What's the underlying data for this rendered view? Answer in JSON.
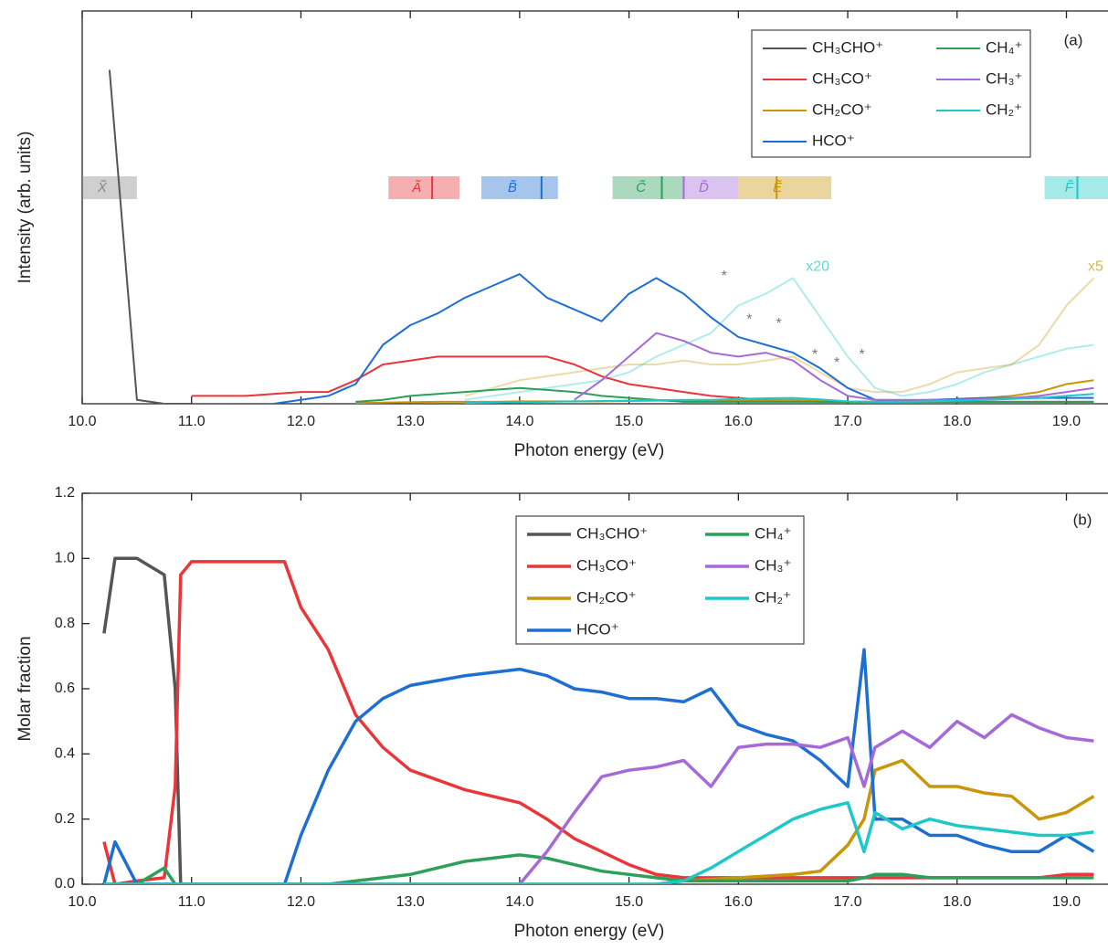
{
  "chart_data": [
    {
      "type": "line",
      "panel_label": "(a)",
      "x_label": "Photon energy (eV)",
      "y_label": "Intensity (arb. units)",
      "xlim": [
        10,
        19.38
      ],
      "ylim": [
        0,
        1
      ],
      "xticks": [
        {
          "value": 10,
          "label": "10.0"
        },
        {
          "value": 11,
          "label": "11.0"
        },
        {
          "value": 12,
          "label": "12.0"
        },
        {
          "value": 13,
          "label": "13.0"
        },
        {
          "value": 14,
          "label": "14.0"
        },
        {
          "value": 15,
          "label": "15.0"
        },
        {
          "value": 16,
          "label": "16.0"
        },
        {
          "value": 17,
          "label": "17.0"
        },
        {
          "value": 18,
          "label": "18.0"
        },
        {
          "value": 19,
          "label": "19.0"
        }
      ],
      "x": [
        10.0,
        10.25,
        10.5,
        10.75,
        11.0,
        11.25,
        11.5,
        11.75,
        12.0,
        12.25,
        12.5,
        12.75,
        13.0,
        13.25,
        13.5,
        13.75,
        14.0,
        14.25,
        14.5,
        14.75,
        15.0,
        15.25,
        15.5,
        15.75,
        16.0,
        16.25,
        16.5,
        16.75,
        17.0,
        17.25,
        17.5,
        17.75,
        18.0,
        18.25,
        18.5,
        18.75,
        19.0,
        19.25
      ],
      "series": [
        {
          "name": "CH₃CHO⁺",
          "color": "#555555",
          "values": [
            null,
            0.85,
            0.01,
            0,
            0,
            null,
            null,
            null,
            null,
            null,
            null,
            null,
            null,
            null,
            null,
            null,
            null,
            null,
            null,
            null,
            null,
            null,
            null,
            null,
            null,
            null,
            null,
            null,
            null,
            null,
            null,
            null,
            null,
            null,
            null,
            null,
            null,
            null
          ]
        },
        {
          "name": "CH₃CO⁺",
          "color": "#e8363a",
          "values": [
            null,
            null,
            null,
            null,
            0.02,
            0.02,
            0.02,
            0.025,
            0.03,
            0.03,
            0.06,
            0.1,
            0.11,
            0.12,
            0.12,
            0.12,
            0.12,
            0.12,
            0.1,
            0.07,
            0.05,
            0.04,
            0.03,
            0.02,
            0.015,
            0.01,
            0.01,
            0.005,
            0.005,
            0.005,
            0.005,
            0.005,
            0.005,
            0.005,
            0.005,
            0.005,
            0.005,
            0.005
          ]
        },
        {
          "name": "CH₂CO⁺",
          "color": "#c8960a",
          "values": [
            null,
            null,
            null,
            null,
            null,
            null,
            null,
            null,
            null,
            null,
            0.002,
            0.003,
            0.004,
            0.005,
            0.005,
            0.005,
            0.006,
            0.006,
            0.006,
            0.006,
            0.007,
            0.008,
            0.008,
            0.008,
            0.008,
            0.009,
            0.01,
            0.008,
            0.005,
            0.005,
            0.006,
            0.008,
            0.012,
            0.015,
            0.02,
            0.03,
            0.05,
            0.06
          ]
        },
        {
          "name": "HCO⁺",
          "color": "#1f6fd1",
          "values": [
            null,
            null,
            null,
            null,
            null,
            null,
            null,
            0.0,
            0.01,
            0.02,
            0.05,
            0.15,
            0.2,
            0.23,
            0.27,
            0.3,
            0.33,
            0.27,
            0.24,
            0.21,
            0.28,
            0.32,
            0.28,
            0.22,
            0.17,
            0.15,
            0.13,
            0.09,
            0.04,
            0.01,
            0.005,
            0.01,
            0.012,
            0.015,
            0.015,
            0.015,
            0.015,
            0.015
          ]
        },
        {
          "name": "CH₄⁺",
          "color": "#2ca05a",
          "values": [
            null,
            null,
            null,
            null,
            null,
            null,
            null,
            null,
            null,
            null,
            0.005,
            0.01,
            0.02,
            0.025,
            0.03,
            0.035,
            0.04,
            0.035,
            0.03,
            0.02,
            0.015,
            0.01,
            0.005,
            0.005,
            0.005,
            0.005,
            0.005,
            0.005,
            0.005,
            0.005,
            0.005,
            0.005,
            0.005,
            0.005,
            0.005,
            0.005,
            0.005,
            0.005
          ]
        },
        {
          "name": "CH₃⁺",
          "color": "#a56ad8",
          "values": [
            null,
            null,
            null,
            null,
            null,
            null,
            null,
            null,
            null,
            null,
            null,
            null,
            null,
            null,
            null,
            null,
            null,
            null,
            0.01,
            0.06,
            0.12,
            0.18,
            0.16,
            0.13,
            0.12,
            0.13,
            0.11,
            0.06,
            0.02,
            0.01,
            0.01,
            0.01,
            0.01,
            0.012,
            0.015,
            0.02,
            0.03,
            0.04
          ]
        },
        {
          "name": "CH₂⁺",
          "color": "#1ec8c8",
          "values": [
            null,
            null,
            null,
            null,
            null,
            null,
            null,
            null,
            null,
            null,
            null,
            null,
            null,
            null,
            0.002,
            0.003,
            0.004,
            0.005,
            0.006,
            0.007,
            0.008,
            0.009,
            0.01,
            0.01,
            0.012,
            0.014,
            0.015,
            0.011,
            0.006,
            0.005,
            0.005,
            0.006,
            0.008,
            0.01,
            0.012,
            0.015,
            0.02,
            0.025
          ]
        }
      ],
      "scaled_series": [
        {
          "label": "x20",
          "color": "#1ec8c8",
          "values": [
            null,
            null,
            null,
            null,
            null,
            null,
            null,
            null,
            null,
            null,
            null,
            null,
            null,
            null,
            0.01,
            0.02,
            0.03,
            0.04,
            0.05,
            0.06,
            0.08,
            0.12,
            0.15,
            0.18,
            0.25,
            0.28,
            0.32,
            0.22,
            0.12,
            0.04,
            0.02,
            0.03,
            0.05,
            0.08,
            0.1,
            0.12,
            0.14,
            0.15
          ]
        },
        {
          "label": "x5",
          "color": "#c8960a",
          "values": [
            null,
            null,
            null,
            null,
            null,
            null,
            null,
            null,
            null,
            null,
            null,
            null,
            null,
            null,
            0.02,
            0.04,
            0.06,
            0.07,
            0.08,
            0.09,
            0.1,
            0.1,
            0.11,
            0.1,
            0.1,
            0.11,
            0.12,
            0.08,
            0.04,
            0.03,
            0.03,
            0.05,
            0.08,
            0.09,
            0.1,
            0.15,
            0.25,
            0.32
          ]
        }
      ],
      "annotations": [
        {
          "text": "*",
          "x": 15.87,
          "y": 0.3
        },
        {
          "text": "*",
          "x": 16.1,
          "y": 0.19
        },
        {
          "text": "*",
          "x": 16.37,
          "y": 0.18
        },
        {
          "text": "*",
          "x": 16.7,
          "y": 0.1
        },
        {
          "text": "*",
          "x": 16.9,
          "y": 0.08
        },
        {
          "text": "*",
          "x": 17.13,
          "y": 0.1
        }
      ],
      "states": [
        {
          "label": "X̃",
          "range": [
            10.0,
            10.5
          ],
          "color": "#888888"
        },
        {
          "label": "Ã",
          "range": [
            12.8,
            13.45
          ],
          "line": 13.2,
          "color": "#e8363a"
        },
        {
          "label": "B̃",
          "range": [
            13.65,
            14.35
          ],
          "line": 14.2,
          "color": "#1f6fd1"
        },
        {
          "label": "C̃",
          "range": [
            14.85,
            15.5
          ],
          "line": 15.3,
          "color": "#2ca05a"
        },
        {
          "label": "D̃",
          "range": [
            15.5,
            16.0
          ],
          "line": 15.5,
          "color": "#a56ad8"
        },
        {
          "label": "Ẽ",
          "range": [
            16.0,
            16.85
          ],
          "line": 16.35,
          "color": "#c8960a"
        },
        {
          "label": "F̃",
          "range": [
            18.8,
            19.38
          ],
          "line": 19.1,
          "color": "#1ec8c8"
        }
      ]
    },
    {
      "type": "line",
      "panel_label": "(b)",
      "x_label": "Photon energy (eV)",
      "y_label": "Molar fraction",
      "xlim": [
        10,
        19.38
      ],
      "ylim": [
        0,
        1.2
      ],
      "xticks": [
        {
          "value": 10,
          "label": "10.0"
        },
        {
          "value": 11,
          "label": "11.0"
        },
        {
          "value": 12,
          "label": "12.0"
        },
        {
          "value": 13,
          "label": "13.0"
        },
        {
          "value": 14,
          "label": "14.0"
        },
        {
          "value": 15,
          "label": "15.0"
        },
        {
          "value": 16,
          "label": "16.0"
        },
        {
          "value": 17,
          "label": "17.0"
        },
        {
          "value": 18,
          "label": "18.0"
        },
        {
          "value": 19,
          "label": "19.0"
        }
      ],
      "yticks": [
        {
          "value": 0,
          "label": "0.0"
        },
        0.2,
        0.4,
        0.6,
        0.8,
        {
          "value": 1,
          "label": "1.0"
        },
        1.2
      ],
      "x": [
        10.2,
        10.3,
        10.5,
        10.75,
        10.85,
        10.9,
        11.0,
        11.5,
        11.85,
        12.0,
        12.25,
        12.5,
        12.75,
        13.0,
        13.5,
        14.0,
        14.25,
        14.5,
        14.75,
        15.0,
        15.25,
        15.5,
        15.75,
        16.0,
        16.25,
        16.5,
        16.75,
        17.0,
        17.15,
        17.25,
        17.5,
        17.75,
        18.0,
        18.25,
        18.5,
        18.75,
        19.0,
        19.25
      ],
      "series": [
        {
          "name": "CH₃CHO⁺",
          "color": "#555555",
          "values": [
            0.77,
            1.0,
            1.0,
            0.95,
            0.6,
            0.0,
            null,
            null,
            null,
            null,
            null,
            null,
            null,
            null,
            null,
            null,
            null,
            null,
            null,
            null,
            null,
            null,
            null,
            null,
            null,
            null,
            null,
            null,
            null,
            null,
            null,
            null,
            null,
            null,
            null,
            null,
            null,
            null
          ]
        },
        {
          "name": "CH₃CO⁺",
          "color": "#e8363a",
          "values": [
            0.13,
            0.0,
            0.01,
            0.02,
            0.3,
            0.95,
            0.99,
            0.99,
            0.99,
            0.85,
            0.72,
            0.52,
            0.42,
            0.35,
            0.29,
            0.25,
            0.2,
            0.14,
            0.1,
            0.06,
            0.03,
            0.02,
            0.02,
            0.02,
            0.02,
            0.02,
            0.02,
            0.02,
            0.02,
            0.02,
            0.02,
            0.02,
            0.02,
            0.02,
            0.02,
            0.02,
            0.03,
            0.03
          ]
        },
        {
          "name": "CH₂CO⁺",
          "color": "#c8960a",
          "values": [
            0,
            0,
            0,
            0,
            0,
            0,
            0,
            0,
            0,
            0,
            0,
            0,
            0,
            0,
            0,
            0,
            0,
            0,
            0,
            0,
            0,
            0.01,
            0.015,
            0.02,
            0.025,
            0.03,
            0.04,
            0.12,
            0.2,
            0.35,
            0.38,
            0.3,
            0.3,
            0.28,
            0.27,
            0.2,
            0.22,
            0.27
          ]
        },
        {
          "name": "HCO⁺",
          "color": "#1f6fd1",
          "values": [
            0.0,
            0.13,
            0.0,
            0.0,
            0.0,
            0.0,
            0.0,
            0.0,
            0.0,
            0.15,
            0.35,
            0.5,
            0.57,
            0.61,
            0.64,
            0.66,
            0.64,
            0.6,
            0.59,
            0.57,
            0.57,
            0.56,
            0.6,
            0.49,
            0.46,
            0.44,
            0.38,
            0.3,
            0.72,
            0.2,
            0.2,
            0.15,
            0.15,
            0.12,
            0.1,
            0.1,
            0.15,
            0.1
          ]
        },
        {
          "name": "CH₄⁺",
          "color": "#2ca05a",
          "values": [
            0,
            0,
            0,
            0.05,
            0,
            0,
            0,
            0,
            0,
            0,
            0,
            0.01,
            0.02,
            0.03,
            0.07,
            0.09,
            0.08,
            0.06,
            0.04,
            0.03,
            0.02,
            0.01,
            0.01,
            0.01,
            0.01,
            0.01,
            0.01,
            0.01,
            0.02,
            0.03,
            0.03,
            0.02,
            0.02,
            0.02,
            0.02,
            0.02,
            0.02,
            0.02
          ]
        },
        {
          "name": "CH₃⁺",
          "color": "#a56ad8",
          "values": [
            0,
            0,
            0,
            0,
            0,
            0,
            0,
            0,
            0,
            0,
            0,
            0,
            0,
            0,
            0,
            0,
            0.1,
            0.22,
            0.33,
            0.35,
            0.36,
            0.38,
            0.3,
            0.42,
            0.43,
            0.43,
            0.42,
            0.45,
            0.3,
            0.42,
            0.47,
            0.42,
            0.5,
            0.45,
            0.52,
            0.48,
            0.45,
            0.44
          ]
        },
        {
          "name": "CH₂⁺",
          "color": "#1ec8c8",
          "values": [
            0,
            0,
            0,
            0,
            0,
            0,
            0,
            0,
            0,
            0,
            0,
            0,
            0,
            0,
            0,
            0,
            0,
            0,
            0,
            0,
            0,
            0.01,
            0.05,
            0.1,
            0.15,
            0.2,
            0.23,
            0.25,
            0.1,
            0.22,
            0.17,
            0.2,
            0.18,
            0.17,
            0.16,
            0.15,
            0.15,
            0.16
          ]
        }
      ]
    }
  ]
}
